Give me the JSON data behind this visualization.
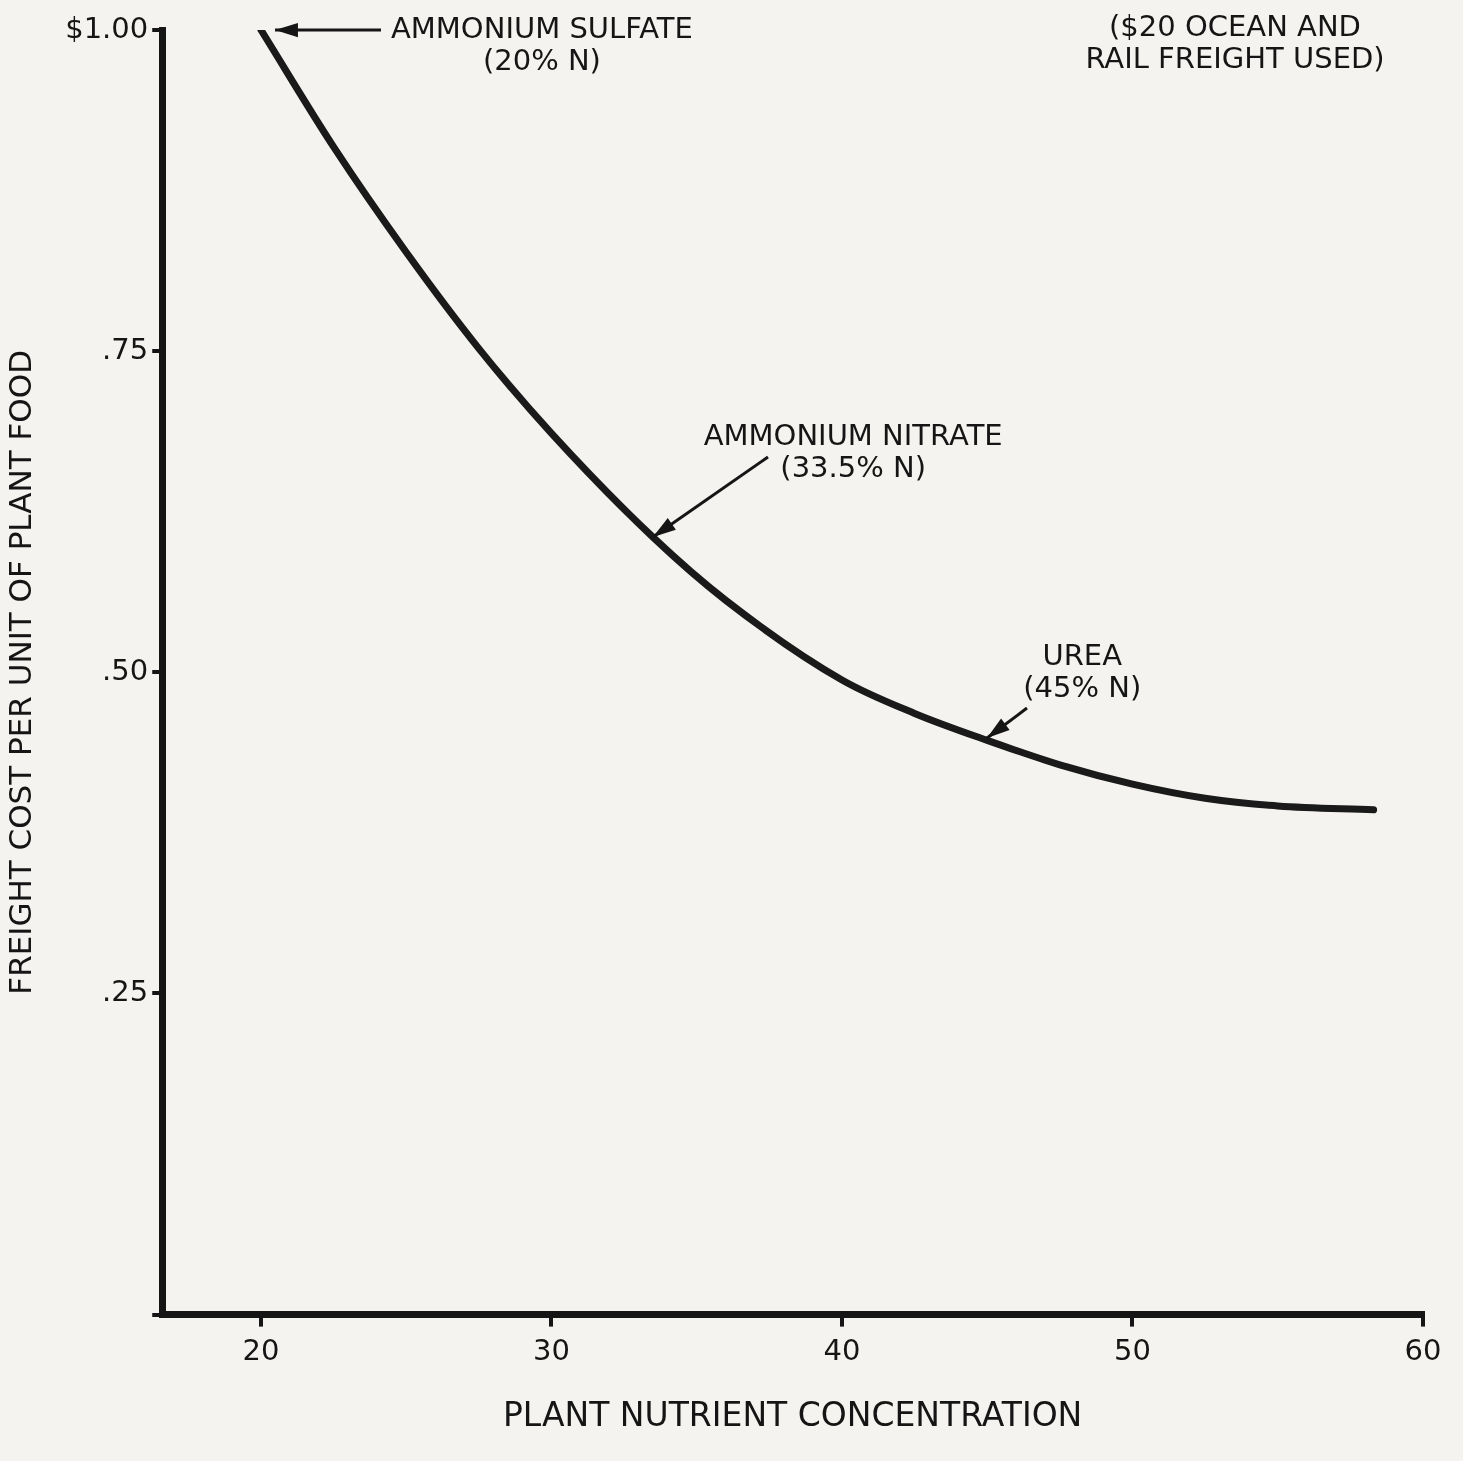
{
  "chart_data": {
    "type": "line",
    "xlabel": "PLANT NUTRIENT CONCENTRATION",
    "ylabel": "FREIGHT COST PER UNIT OF PLANT FOOD",
    "x": [
      20,
      22.5,
      25,
      27.5,
      30,
      33.5,
      36,
      40,
      42.5,
      45,
      47.5,
      50,
      52.5,
      55,
      58.3
    ],
    "series": [
      {
        "color": "#1a1a1a",
        "values": [
          1.0,
          0.909,
          0.827,
          0.752,
          0.686,
          0.605,
          0.556,
          0.494,
          0.468,
          0.447,
          0.428,
          0.413,
          0.402,
          0.396,
          0.393
        ]
      }
    ],
    "xlim": [
      16.6,
      60
    ],
    "xticks": [
      20,
      30,
      40,
      50,
      60
    ],
    "ylim": [
      0,
      1
    ],
    "yticks": [
      {
        "value": 0,
        "label": null
      },
      {
        "value": 0.25,
        "label": ".25"
      },
      {
        "value": 0.5,
        "label": ".50"
      },
      {
        "value": 0.75,
        "label": ".75"
      },
      {
        "value": 1,
        "label": "$1.00"
      }
    ],
    "grid": false,
    "legend": false,
    "marker": "none",
    "line_style": "solid",
    "annotations": [
      "AMMONIUM SULFATE (20% N)",
      {
        "text": "AMMONIUM NITRATE (33.5% N)",
        "x": 33.5,
        "y": 0.605
      },
      {
        "text": "UREA (45% N)",
        "x": 45,
        "y": 0.449
      },
      "($20 OCEAN AND RAIL FREIGHT USED)"
    ]
  }
}
